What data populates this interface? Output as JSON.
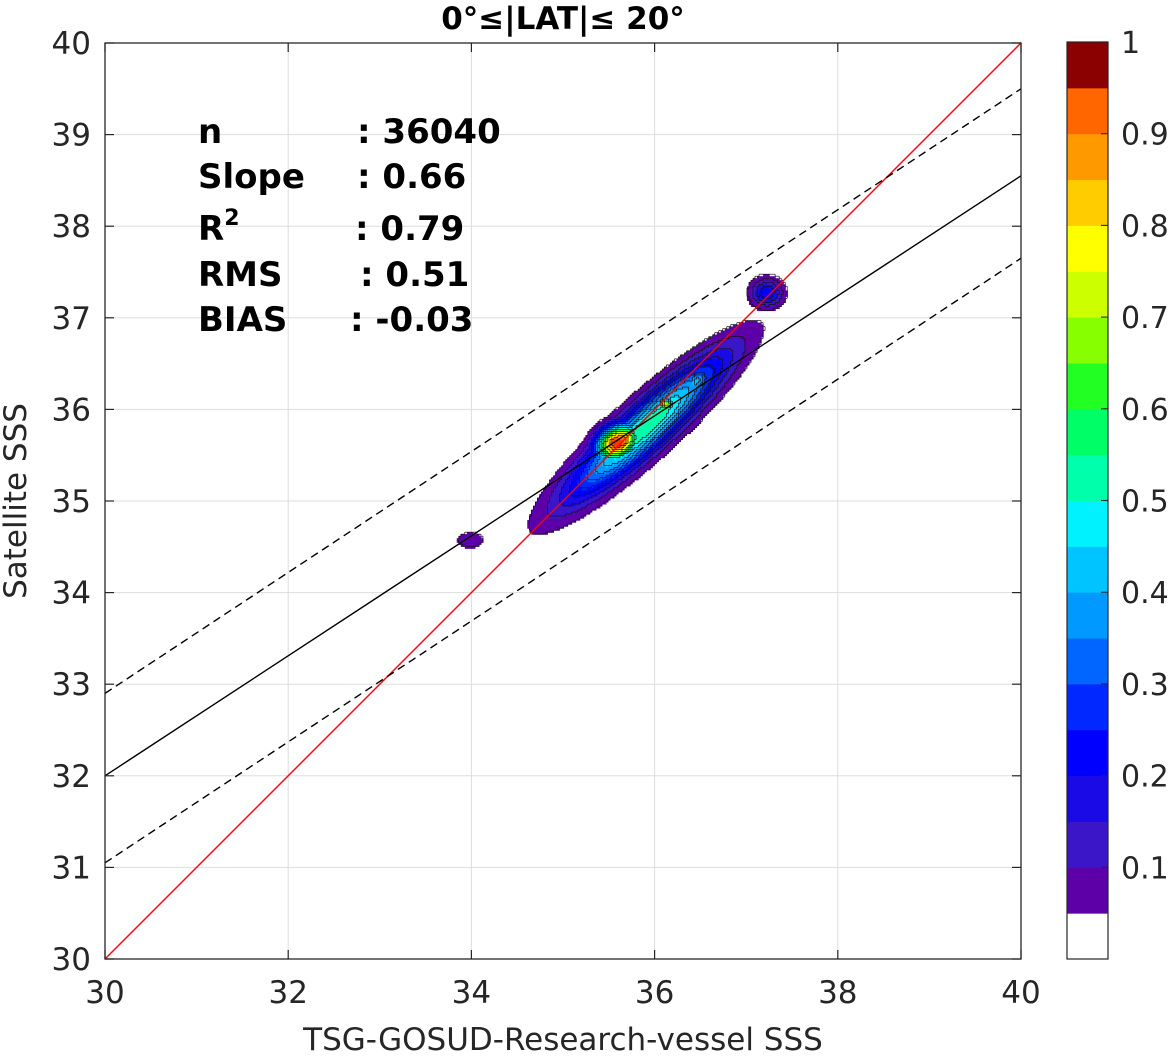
{
  "chart_data": {
    "type": "heatmap",
    "subtype": "filled-contour density scatter",
    "title": "0°≤|LAT|≤ 20°",
    "xlabel": "TSG-GOSUD-Research-vessel SSS",
    "ylabel": "Satellite SSS",
    "xlim": [
      30,
      40
    ],
    "ylim": [
      30,
      40
    ],
    "xticks": [
      "30",
      "32",
      "34",
      "36",
      "38",
      "40"
    ],
    "yticks": [
      "30",
      "31",
      "32",
      "33",
      "34",
      "35",
      "36",
      "37",
      "38",
      "39",
      "40"
    ],
    "grid": true,
    "stats": [
      {
        "label": "n",
        "value": ": 36040"
      },
      {
        "label": "Slope",
        "value": ": 0.66"
      },
      {
        "label": "R",
        "sup": "2",
        "value": ": 0.79"
      },
      {
        "label": "RMS",
        "value": ": 0.51"
      },
      {
        "label": "BIAS",
        "value": ": -0.03"
      }
    ],
    "lines": [
      {
        "name": "one-to-one",
        "color": "#ff0000",
        "style": "solid",
        "points": [
          [
            30,
            30
          ],
          [
            40,
            40
          ]
        ]
      },
      {
        "name": "regression",
        "color": "#000000",
        "style": "solid",
        "points": [
          [
            30,
            32.0
          ],
          [
            40,
            38.55
          ]
        ]
      },
      {
        "name": "upper-bound",
        "color": "#000000",
        "style": "dashed",
        "points": [
          [
            30,
            32.9
          ],
          [
            40,
            39.5
          ]
        ]
      },
      {
        "name": "lower-bound",
        "color": "#000000",
        "style": "dashed",
        "points": [
          [
            30,
            31.05
          ],
          [
            40,
            37.65
          ]
        ]
      }
    ],
    "density_blobs": [
      {
        "cx": 35.9,
        "cy": 35.8,
        "rx": 1.25,
        "ry": 0.27,
        "angle_deg": 42,
        "peak": 0.55
      },
      {
        "cx": 35.6,
        "cy": 35.64,
        "rx": 0.28,
        "ry": 0.2,
        "angle_deg": 30,
        "peak": 1.0
      },
      {
        "cx": 36.12,
        "cy": 36.05,
        "rx": 0.11,
        "ry": 0.08,
        "angle_deg": 0,
        "peak": 0.78
      },
      {
        "cx": 36.45,
        "cy": 36.3,
        "rx": 0.22,
        "ry": 0.14,
        "angle_deg": 45,
        "peak": 0.42
      },
      {
        "cx": 37.22,
        "cy": 37.27,
        "rx": 0.2,
        "ry": 0.18,
        "angle_deg": 0,
        "peak": 0.24
      },
      {
        "cx": 33.98,
        "cy": 34.57,
        "rx": 0.19,
        "ry": 0.11,
        "angle_deg": 0,
        "peak": 0.1
      }
    ],
    "colorbar": {
      "ticks": [
        "0.1",
        "0.2",
        "0.3",
        "0.4",
        "0.5",
        "0.6",
        "0.7",
        "0.8",
        "0.9",
        "1"
      ],
      "levels": [
        0,
        0.05,
        0.1,
        0.15,
        0.2,
        0.25,
        0.3,
        0.35,
        0.4,
        0.45,
        0.5,
        0.55,
        0.6,
        0.65,
        0.7,
        0.75,
        0.8,
        0.85,
        0.9,
        0.95,
        1.0
      ],
      "colors": [
        "#ffffff",
        "#5d00a8",
        "#3a16c8",
        "#1a0ae6",
        "#0000ff",
        "#0028ff",
        "#0066ff",
        "#0099ff",
        "#00c4ff",
        "#00f2ff",
        "#00ffaa",
        "#00ff66",
        "#22ff22",
        "#88ff00",
        "#ccff00",
        "#ffff00",
        "#ffcc00",
        "#ff9900",
        "#ff6600",
        "#ff3300",
        "#ff0000",
        "#cc0000",
        "#8b0000"
      ]
    }
  }
}
